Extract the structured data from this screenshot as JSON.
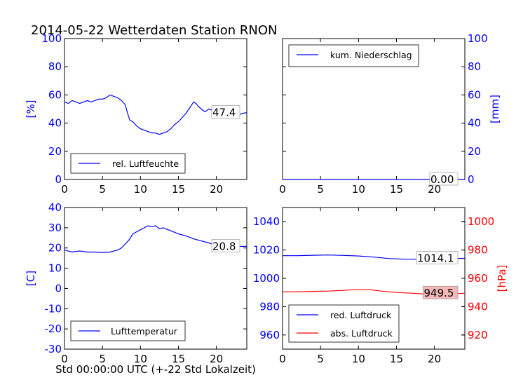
{
  "title": "2014-05-22 Wetterdaten Station RNON",
  "xlabel": "Std 00:00:00 UTC (+-22 Std Lokalzeit)",
  "colors": {
    "blue": "#0000ff",
    "red": "#ff0000",
    "annotation_bg_red": "#f4b8b8"
  },
  "chart_data": [
    {
      "id": "humidity",
      "type": "line",
      "xlim": [
        0,
        24
      ],
      "ylim": [
        0,
        100
      ],
      "x_ticks": [
        0,
        5,
        10,
        15,
        20
      ],
      "y_ticks": [
        0,
        20,
        40,
        60,
        80,
        100
      ],
      "ylabel": "[%]",
      "legend": "rel. Luftfeuchte",
      "legend_position": "lower-left",
      "annotation": "47.4",
      "series": [
        {
          "name": "rel. Luftfeuchte",
          "color": "#0000ff",
          "x": [
            0,
            0.5,
            1,
            1.5,
            2,
            2.5,
            3,
            3.5,
            4,
            4.5,
            5,
            5.5,
            6,
            6.5,
            7,
            7.5,
            8,
            8.3,
            8.6,
            9,
            9.5,
            10,
            10.5,
            11,
            11.5,
            12,
            12.5,
            13,
            13.5,
            14,
            14.5,
            15,
            15.5,
            16,
            16.5,
            17,
            17.3,
            17.6,
            18,
            18.5,
            19,
            19.5,
            20,
            20.5,
            21,
            21.5,
            22,
            22.5,
            23,
            23.5,
            24
          ],
          "y": [
            55,
            54,
            56,
            55,
            54,
            55,
            56,
            55,
            56,
            57,
            57,
            58,
            60,
            59,
            58,
            56,
            53,
            47,
            42,
            41,
            38,
            36,
            35,
            34,
            33,
            33,
            32,
            33,
            34,
            36,
            39,
            41,
            44,
            47,
            51,
            55,
            54,
            52,
            50,
            48,
            50,
            49,
            47,
            46,
            49,
            47,
            45,
            48,
            46,
            47,
            47.4
          ]
        }
      ]
    },
    {
      "id": "precipitation",
      "type": "line",
      "xlim": [
        0,
        24
      ],
      "ylim": [
        0,
        100
      ],
      "x_ticks": [
        0,
        5,
        10,
        15,
        20
      ],
      "y_ticks": [
        0,
        20,
        40,
        60,
        80,
        100
      ],
      "ylabel": "[mm]",
      "y_axis_side": "right",
      "legend": "kum. Niederschlag",
      "legend_position": "upper-left",
      "annotation": "0.00",
      "series": [
        {
          "name": "kum. Niederschlag",
          "color": "#0000ff",
          "x": [
            0,
            24
          ],
          "y": [
            0,
            0
          ]
        }
      ]
    },
    {
      "id": "temperature",
      "type": "line",
      "xlim": [
        0,
        24
      ],
      "ylim": [
        -30,
        40
      ],
      "x_ticks": [
        0,
        5,
        10,
        15,
        20
      ],
      "y_ticks": [
        -30,
        -20,
        -10,
        0,
        10,
        20,
        30,
        40
      ],
      "ylabel": "[C]",
      "legend": "Lufttemperatur",
      "legend_position": "lower-left",
      "annotation": "20.8",
      "series": [
        {
          "name": "Lufttemperatur",
          "color": "#0000ff",
          "x": [
            0,
            1,
            2,
            3,
            4,
            5,
            6,
            7,
            7.5,
            8,
            8.5,
            9,
            9.5,
            10,
            10.5,
            11,
            11.5,
            12,
            12.5,
            13,
            14,
            15,
            16,
            17,
            18,
            19,
            20,
            21,
            22,
            23,
            24
          ],
          "y": [
            19,
            18,
            18.5,
            18,
            18,
            17.8,
            18,
            19,
            20,
            22,
            24,
            27,
            28,
            29,
            30,
            31,
            30.5,
            31,
            29.5,
            30,
            28.5,
            27,
            26,
            24.5,
            23.5,
            22.5,
            21.5,
            21.5,
            21,
            20.8,
            20.8
          ]
        }
      ]
    },
    {
      "id": "pressure",
      "type": "line",
      "xlim": [
        0,
        24
      ],
      "ylim": [
        950,
        1050
      ],
      "ylim_right": [
        910,
        1010
      ],
      "x_ticks": [
        0,
        5,
        10,
        15,
        20
      ],
      "y_ticks": [
        960,
        980,
        1000,
        1020,
        1040
      ],
      "y_ticks_right": [
        920,
        940,
        960,
        980,
        1000
      ],
      "ylabel_right": "[hPa]",
      "legend_position": "lower-left",
      "annotations": [
        "1014.1",
        "949.5"
      ],
      "series": [
        {
          "name": "red. Luftdruck",
          "color": "#0000ff",
          "axis": "left",
          "x": [
            0,
            2,
            4,
            6,
            8,
            10,
            12,
            14,
            16,
            18,
            20,
            22,
            24
          ],
          "y": [
            1016,
            1016,
            1016.3,
            1016.5,
            1016.2,
            1015.8,
            1015,
            1014,
            1013.5,
            1013.5,
            1013.5,
            1014,
            1014.1
          ]
        },
        {
          "name": "abs. Luftdruck",
          "color": "#ff0000",
          "axis": "right",
          "x": [
            0,
            2,
            4,
            6,
            8,
            9.5,
            10.5,
            11.5,
            13,
            15,
            17,
            19,
            21,
            22.5,
            24
          ],
          "y": [
            950.5,
            950.5,
            950.8,
            951,
            951.5,
            952,
            952,
            952,
            951,
            950,
            949.5,
            948.8,
            948.5,
            949,
            949.5
          ]
        }
      ]
    }
  ]
}
